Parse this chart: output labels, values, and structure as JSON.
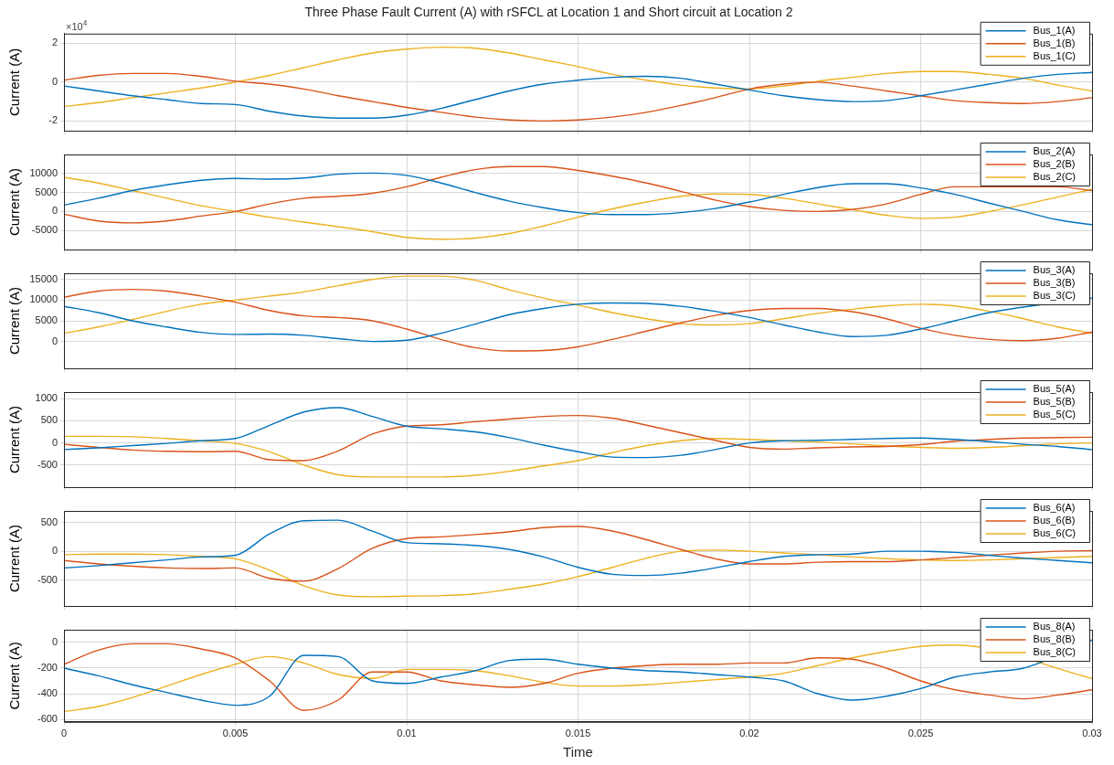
{
  "chart_data": [
    {
      "type": "line",
      "title": "Three Phase Fault Current (A) with rSFCL at Location 1 and Short circuit at Location 2",
      "ylabel": "Current (A)",
      "annotations": [
        "×10$^{4}$"
      ],
      "x": [
        0,
        0.001,
        0.002,
        0.003,
        0.004,
        0.005,
        0.006,
        0.007,
        0.008,
        0.009,
        0.01,
        0.011,
        0.012,
        0.013,
        0.014,
        0.015,
        0.016,
        0.017,
        0.018,
        0.019,
        0.02,
        0.021,
        0.022,
        0.023,
        0.024,
        0.025,
        0.026,
        0.027,
        0.028,
        0.029,
        0.03
      ],
      "xlim": [
        0,
        0.03
      ],
      "xticks": [
        0,
        0.005,
        0.01,
        0.015,
        0.02,
        0.025,
        0.03
      ],
      "ylim": [
        -2.5,
        2.5
      ],
      "yticks": [
        -2,
        0,
        2
      ],
      "grid": true,
      "legend": "top right",
      "tick_labels": "y",
      "series": [
        {
          "name": "Bus_1(A)",
          "color": "#0072bd",
          "values": [
            -0.2,
            -0.45,
            -0.7,
            -0.9,
            -1.1,
            -1.15,
            -1.5,
            -1.75,
            -1.85,
            -1.85,
            -1.7,
            -1.35,
            -0.9,
            -0.45,
            -0.1,
            0.1,
            0.25,
            0.3,
            0.2,
            -0.1,
            -0.4,
            -0.7,
            -0.9,
            -1,
            -0.95,
            -0.7,
            -0.4,
            -0.1,
            0.2,
            0.4,
            0.5
          ]
        },
        {
          "name": "Bus_1(B)",
          "color": "#d95319",
          "values": [
            0.1,
            0.35,
            0.45,
            0.45,
            0.3,
            0.05,
            -0.1,
            -0.35,
            -0.7,
            -1,
            -1.3,
            -1.55,
            -1.8,
            -1.95,
            -2,
            -1.95,
            -1.8,
            -1.55,
            -1.2,
            -0.8,
            -0.35,
            -0.1,
            0,
            -0.2,
            -0.45,
            -0.7,
            -0.95,
            -1.05,
            -1.1,
            -1,
            -0.8
          ]
        },
        {
          "name": "Bus_1(C)",
          "color": "#edb120",
          "values": [
            -1.25,
            -1.05,
            -0.8,
            -0.55,
            -0.3,
            0,
            0.35,
            0.75,
            1.15,
            1.5,
            1.7,
            1.8,
            1.75,
            1.5,
            1.15,
            0.8,
            0.4,
            0.1,
            -0.15,
            -0.3,
            -0.35,
            -0.2,
            0.05,
            0.25,
            0.45,
            0.55,
            0.55,
            0.4,
            0.2,
            -0.15,
            -0.45
          ]
        }
      ]
    },
    {
      "type": "line",
      "ylabel": "Current (A)",
      "x": [
        0,
        0.001,
        0.002,
        0.003,
        0.004,
        0.005,
        0.006,
        0.007,
        0.008,
        0.009,
        0.01,
        0.011,
        0.012,
        0.013,
        0.014,
        0.015,
        0.016,
        0.017,
        0.018,
        0.019,
        0.02,
        0.021,
        0.022,
        0.023,
        0.024,
        0.025,
        0.026,
        0.027,
        0.028,
        0.029,
        0.03
      ],
      "xlim": [
        0,
        0.03
      ],
      "xticks": [
        0,
        0.005,
        0.01,
        0.015,
        0.02,
        0.025,
        0.03
      ],
      "ylim": [
        -10000,
        15000
      ],
      "yticks": [
        -5000,
        0,
        5000,
        10000
      ],
      "grid": true,
      "legend": "top right",
      "tick_labels": "y",
      "series": [
        {
          "name": "Bus_2(A)",
          "color": "#0072bd",
          "values": [
            1700,
            3500,
            5500,
            7000,
            8200,
            8700,
            8500,
            8800,
            9800,
            10100,
            9500,
            7500,
            5000,
            2700,
            1000,
            -300,
            -800,
            -800,
            -300,
            800,
            2500,
            4500,
            6300,
            7300,
            7300,
            6200,
            4500,
            2200,
            0,
            -2200,
            -3500
          ]
        },
        {
          "name": "Bus_2(B)",
          "color": "#d95319",
          "values": [
            -700,
            -2500,
            -3000,
            -2500,
            -1200,
            0,
            2000,
            3500,
            4000,
            4800,
            6500,
            9000,
            11000,
            11800,
            11800,
            10800,
            9300,
            7500,
            5300,
            3000,
            1300,
            300,
            0,
            500,
            2000,
            4500,
            6500,
            null,
            null,
            6500,
            5500
          ]
        },
        {
          "name": "Bus_2(C)",
          "color": "#edb120",
          "values": [
            9000,
            7500,
            5500,
            3500,
            1500,
            0,
            -1500,
            -2800,
            -4000,
            -5300,
            -6800,
            -7300,
            -7000,
            -5800,
            -3800,
            -1500,
            700,
            2500,
            4000,
            4600,
            4500,
            3500,
            2000,
            500,
            -1000,
            -1800,
            -1500,
            0,
            1800,
            3800,
            5800
          ]
        }
      ]
    },
    {
      "type": "line",
      "ylabel": "Current (A)",
      "x": [
        0,
        0.001,
        0.002,
        0.003,
        0.004,
        0.005,
        0.006,
        0.007,
        0.008,
        0.009,
        0.01,
        0.011,
        0.012,
        0.013,
        0.014,
        0.015,
        0.016,
        0.017,
        0.018,
        0.019,
        0.02,
        0.021,
        0.022,
        0.023,
        0.024,
        0.025,
        0.026,
        0.027,
        0.028,
        0.029,
        0.03
      ],
      "xlim": [
        0,
        0.03
      ],
      "xticks": [
        0,
        0.005,
        0.01,
        0.015,
        0.02,
        0.025,
        0.03
      ],
      "ylim": [
        -6500,
        16500
      ],
      "yticks": [
        0,
        5000,
        10000,
        15000
      ],
      "grid": true,
      "legend": "top right",
      "tick_labels": "y",
      "series": [
        {
          "name": "Bus_3(A)",
          "color": "#0072bd",
          "values": [
            8500,
            7000,
            5000,
            3500,
            2200,
            1700,
            1800,
            1500,
            700,
            0,
            300,
            2000,
            4200,
            6500,
            8000,
            9000,
            9300,
            9200,
            8500,
            7300,
            5800,
            4000,
            2300,
            1200,
            1500,
            3000,
            5000,
            7000,
            null,
            null,
            10500
          ]
        },
        {
          "name": "Bus_3(B)",
          "color": "#d95319",
          "values": [
            10700,
            12200,
            12600,
            12200,
            11000,
            9500,
            7500,
            6200,
            5800,
            5000,
            3000,
            500,
            -1500,
            -2300,
            -2200,
            -1300,
            500,
            2500,
            4500,
            6300,
            7500,
            8000,
            8000,
            7200,
            5500,
            3200,
            1500,
            500,
            200,
            800,
            2300
          ]
        },
        {
          "name": "Bus_3(C)",
          "color": "#edb120",
          "values": [
            2000,
            3500,
            5300,
            7300,
            9000,
            10000,
            11000,
            12000,
            13500,
            15000,
            15800,
            15800,
            14800,
            12500,
            10500,
            8800,
            7000,
            5500,
            4300,
            4000,
            4300,
            5500,
            6800,
            7800,
            8600,
            9000,
            8600,
            7300,
            5500,
            3500,
            2000
          ]
        }
      ]
    },
    {
      "type": "line",
      "ylabel": "Current (A)",
      "x": [
        0,
        0.001,
        0.002,
        0.003,
        0.004,
        0.005,
        0.006,
        0.007,
        0.008,
        0.009,
        0.01,
        0.011,
        0.012,
        0.013,
        0.014,
        0.015,
        0.016,
        0.017,
        0.018,
        0.019,
        0.02,
        0.021,
        0.022,
        0.023,
        0.024,
        0.025,
        0.026,
        0.027,
        0.028,
        0.029,
        0.03
      ],
      "xlim": [
        0,
        0.03
      ],
      "xticks": [
        0,
        0.005,
        0.01,
        0.015,
        0.02,
        0.025,
        0.03
      ],
      "ylim": [
        -1000,
        1150
      ],
      "yticks": [
        -500,
        0,
        500,
        1000
      ],
      "grid": true,
      "legend": "top right",
      "tick_labels": "y",
      "series": [
        {
          "name": "Bus_5(A)",
          "color": "#0072bd",
          "values": [
            -150,
            -110,
            -60,
            -10,
            50,
            100,
            400,
            700,
            800,
            600,
            380,
            320,
            250,
            120,
            -50,
            -200,
            -320,
            -330,
            -280,
            -150,
            0,
            50,
            60,
            80,
            100,
            110,
            80,
            30,
            -30,
            -80,
            -150
          ]
        },
        {
          "name": "Bus_5(B)",
          "color": "#d95319",
          "values": [
            -30,
            -100,
            -160,
            -190,
            -200,
            -190,
            -380,
            -400,
            -180,
            200,
            380,
            410,
            480,
            540,
            600,
            620,
            560,
            400,
            230,
            60,
            -100,
            -140,
            -110,
            -90,
            -80,
            -40,
            40,
            80,
            110,
            120,
            130
          ]
        },
        {
          "name": "Bus_5(C)",
          "color": "#edb120",
          "values": [
            150,
            150,
            140,
            100,
            50,
            -10,
            -200,
            -500,
            -720,
            -770,
            -770,
            -770,
            -730,
            -640,
            -520,
            -400,
            -220,
            -60,
            50,
            100,
            80,
            50,
            20,
            -20,
            -70,
            -100,
            -120,
            -100,
            -60,
            -20,
            0
          ]
        }
      ]
    },
    {
      "type": "line",
      "ylabel": "Current (A)",
      "x": [
        0,
        0.001,
        0.002,
        0.003,
        0.004,
        0.005,
        0.006,
        0.007,
        0.008,
        0.009,
        0.01,
        0.011,
        0.012,
        0.013,
        0.014,
        0.015,
        0.016,
        0.017,
        0.018,
        0.019,
        0.02,
        0.021,
        0.022,
        0.023,
        0.024,
        0.025,
        0.026,
        0.027,
        0.028,
        0.029,
        0.03
      ],
      "xlim": [
        0,
        0.03
      ],
      "xticks": [
        0,
        0.005,
        0.01,
        0.015,
        0.02,
        0.025,
        0.03
      ],
      "ylim": [
        -950,
        700
      ],
      "yticks": [
        -500,
        0,
        500
      ],
      "grid": true,
      "legend": "top right",
      "tick_labels": "y",
      "series": [
        {
          "name": "Bus_6(A)",
          "color": "#0072bd",
          "values": [
            -290,
            -250,
            -200,
            -150,
            -100,
            -70,
            300,
            530,
            540,
            350,
            150,
            130,
            100,
            30,
            -100,
            -280,
            -400,
            -420,
            -380,
            -290,
            -180,
            -90,
            -60,
            -50,
            0,
            0,
            -20,
            -70,
            -120,
            -160,
            -200
          ]
        },
        {
          "name": "Bus_6(B)",
          "color": "#d95319",
          "values": [
            -160,
            -220,
            -260,
            -290,
            -300,
            -290,
            -470,
            -520,
            -300,
            50,
            220,
            250,
            290,
            340,
            410,
            430,
            350,
            200,
            30,
            -130,
            -220,
            -220,
            -190,
            -180,
            -180,
            -150,
            -110,
            -70,
            -30,
            0,
            10
          ]
        },
        {
          "name": "Bus_6(C)",
          "color": "#edb120",
          "values": [
            -60,
            -50,
            -50,
            -60,
            -90,
            -130,
            -330,
            -600,
            -760,
            -790,
            -780,
            -770,
            -740,
            -660,
            -570,
            -440,
            -280,
            -120,
            0,
            20,
            0,
            -30,
            -60,
            -100,
            -130,
            -150,
            -160,
            -150,
            -130,
            -110,
            -90
          ]
        }
      ]
    },
    {
      "type": "line",
      "ylabel": "Current (A)",
      "xlabel": "Time",
      "x": [
        0,
        0.001,
        0.002,
        0.003,
        0.004,
        0.005,
        0.006,
        0.007,
        0.008,
        0.009,
        0.01,
        0.011,
        0.012,
        0.013,
        0.014,
        0.015,
        0.016,
        0.017,
        0.018,
        0.019,
        0.02,
        0.021,
        0.022,
        0.023,
        0.024,
        0.025,
        0.026,
        0.027,
        0.028,
        0.029,
        0.03
      ],
      "xlim": [
        0,
        0.03
      ],
      "xticks": [
        0,
        0.005,
        0.01,
        0.015,
        0.02,
        0.025,
        0.03
      ],
      "ylim": [
        -620,
        100
      ],
      "yticks": [
        -600,
        -400,
        -200,
        0
      ],
      "grid": true,
      "legend": "top right",
      "series": [
        {
          "name": "Bus_8(A)",
          "color": "#0072bd",
          "values": [
            -200,
            -260,
            -330,
            -390,
            -450,
            -490,
            -420,
            -100,
            -110,
            -300,
            -320,
            -270,
            -220,
            -140,
            -130,
            -170,
            -200,
            -220,
            -230,
            -250,
            -270,
            -300,
            -400,
            -450,
            -420,
            -360,
            -270,
            -230,
            -200,
            null,
            20
          ]
        },
        {
          "name": "Bus_8(B)",
          "color": "#d95319",
          "values": [
            -170,
            -60,
            -10,
            -10,
            -50,
            -120,
            -300,
            -530,
            -450,
            -230,
            -230,
            -300,
            -330,
            -350,
            -320,
            -240,
            -200,
            -180,
            -170,
            -170,
            -160,
            -160,
            -120,
            -130,
            -200,
            -300,
            -370,
            -410,
            -440,
            -410,
            -370
          ]
        },
        {
          "name": "Bus_8(C)",
          "color": "#edb120",
          "values": [
            -540,
            -500,
            -430,
            -340,
            -250,
            -170,
            -110,
            -160,
            -250,
            -280,
            -210,
            -210,
            -220,
            -260,
            -310,
            -340,
            -340,
            -330,
            -310,
            -290,
            -270,
            -240,
            -180,
            -120,
            -70,
            -30,
            -20,
            null,
            null,
            null,
            -280
          ]
        }
      ]
    }
  ]
}
